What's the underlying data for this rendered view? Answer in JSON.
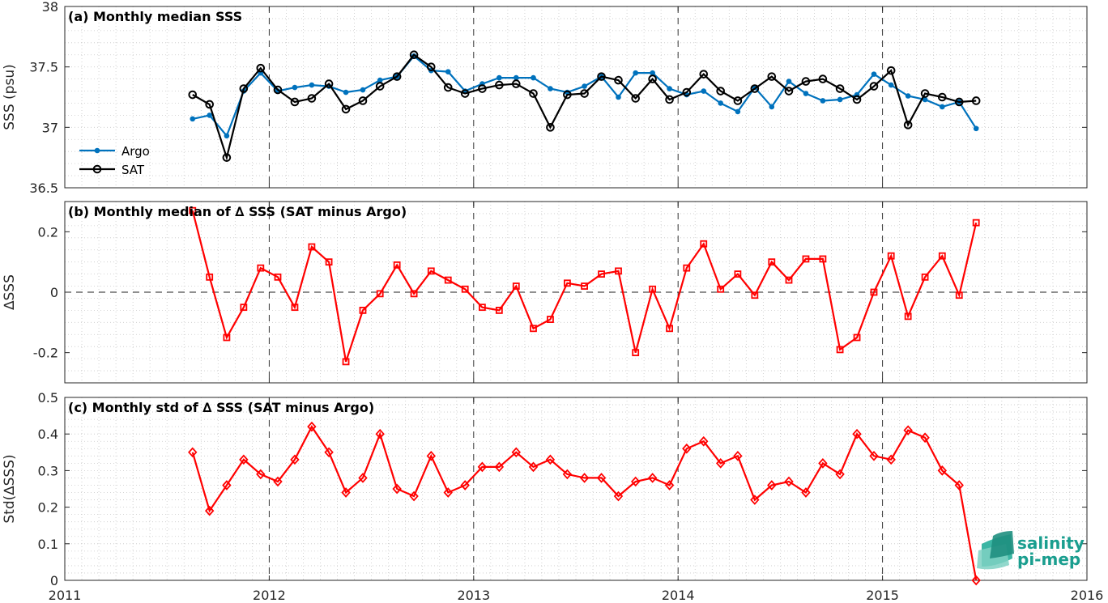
{
  "xaxis": {
    "ticks": [
      2011,
      2012,
      2013,
      2014,
      2015,
      2016
    ],
    "labels": [
      "2011",
      "2012",
      "2013",
      "2014",
      "2015",
      "2016"
    ],
    "xlim": [
      2011,
      2016
    ]
  },
  "logo": {
    "line1": "salinity",
    "line2": "pi-mep"
  },
  "colors": {
    "argo": "#0072BD",
    "sat": "#000000",
    "delta": "#FF0000",
    "grid": "#C8C8C8"
  },
  "chart_data": [
    {
      "type": "line",
      "title": "(a) Monthly median SSS",
      "ylabel": "SSS (psu)",
      "ylim": [
        36.5,
        38
      ],
      "yticks": [
        36.5,
        37,
        37.5,
        38
      ],
      "yticklabels": [
        "36.5",
        "37",
        "37.5",
        "38"
      ],
      "grid": true,
      "legend": {
        "placement": "lower-left",
        "entries": [
          "Argo",
          "SAT"
        ]
      },
      "x": [
        2011.625,
        2011.708,
        2011.792,
        2011.875,
        2011.958,
        2012.042,
        2012.125,
        2012.208,
        2012.292,
        2012.375,
        2012.458,
        2012.542,
        2012.625,
        2012.708,
        2012.792,
        2012.875,
        2012.958,
        2013.042,
        2013.125,
        2013.208,
        2013.292,
        2013.375,
        2013.458,
        2013.542,
        2013.625,
        2013.708,
        2013.792,
        2013.875,
        2013.958,
        2014.042,
        2014.125,
        2014.208,
        2014.292,
        2014.375,
        2014.458,
        2014.542,
        2014.625,
        2014.708,
        2014.792,
        2014.875,
        2014.958,
        2015.042,
        2015.125,
        2015.208,
        2015.292,
        2015.375,
        2015.458
      ],
      "series": [
        {
          "name": "Argo",
          "marker": "dot",
          "values": [
            37.07,
            37.1,
            36.93,
            37.3,
            37.45,
            37.3,
            37.33,
            37.35,
            37.34,
            37.29,
            37.31,
            37.39,
            37.42,
            37.59,
            37.47,
            37.46,
            37.3,
            37.36,
            37.41,
            37.41,
            37.41,
            37.32,
            37.29,
            37.34,
            37.42,
            37.25,
            37.45,
            37.45,
            37.32,
            37.27,
            37.3,
            37.2,
            37.13,
            37.33,
            37.17,
            37.38,
            37.28,
            37.22,
            37.23,
            37.27,
            37.44,
            37.35,
            37.26,
            37.23,
            37.17,
            37.21,
            36.99
          ]
        },
        {
          "name": "SAT",
          "marker": "circle",
          "values": [
            37.27,
            37.19,
            36.75,
            37.32,
            37.49,
            37.31,
            37.21,
            37.24,
            37.36,
            37.15,
            37.22,
            37.34,
            37.42,
            37.6,
            37.5,
            37.33,
            37.28,
            37.32,
            37.35,
            37.36,
            37.28,
            37.0,
            37.27,
            37.28,
            37.42,
            37.39,
            37.24,
            37.4,
            37.23,
            37.29,
            37.44,
            37.3,
            37.22,
            37.32,
            37.42,
            37.3,
            37.38,
            37.4,
            37.32,
            37.23,
            37.34,
            37.47,
            37.02,
            37.28,
            37.25,
            37.21,
            37.22
          ]
        }
      ]
    },
    {
      "type": "line",
      "title": "(b) Monthly median of ∆ SSS (SAT minus Argo)",
      "ylabel": "∆SSS",
      "ylim": [
        -0.3,
        0.3
      ],
      "yticks": [
        -0.2,
        0,
        0.2
      ],
      "yticklabels": [
        "-0.2",
        "0",
        "0.2"
      ],
      "grid": true,
      "reference_line": 0,
      "series": [
        {
          "name": "",
          "marker": "square",
          "values": [
            0.27,
            0.05,
            -0.15,
            -0.05,
            0.08,
            0.05,
            -0.05,
            0.15,
            0.1,
            -0.23,
            -0.06,
            -0.005,
            0.09,
            -0.005,
            0.07,
            0.04,
            0.01,
            -0.05,
            -0.06,
            0.02,
            -0.12,
            -0.09,
            0.03,
            0.02,
            0.06,
            0.07,
            -0.2,
            0.01,
            -0.12,
            0.08,
            0.16,
            0.01,
            0.06,
            -0.01,
            0.1,
            0.04,
            0.11,
            0.11,
            -0.19,
            -0.15,
            0.0,
            0.12,
            -0.08,
            0.05,
            0.12,
            -0.01,
            0.23
          ]
        }
      ]
    },
    {
      "type": "line",
      "title": "(c) Monthly std of ∆ SSS (SAT minus Argo)",
      "ylabel": "Std(∆SSS)",
      "ylim": [
        0,
        0.5
      ],
      "yticks": [
        0,
        0.1,
        0.2,
        0.3,
        0.4,
        0.5
      ],
      "yticklabels": [
        "0",
        "0.1",
        "0.2",
        "0.3",
        "0.4",
        "0.5"
      ],
      "grid": true,
      "series": [
        {
          "name": "",
          "marker": "diamond",
          "values": [
            0.35,
            0.19,
            0.26,
            0.33,
            0.29,
            0.27,
            0.33,
            0.42,
            0.35,
            0.24,
            0.28,
            0.4,
            0.25,
            0.23,
            0.34,
            0.24,
            0.26,
            0.31,
            0.31,
            0.35,
            0.31,
            0.33,
            0.29,
            0.28,
            0.28,
            0.23,
            0.27,
            0.28,
            0.26,
            0.36,
            0.38,
            0.32,
            0.34,
            0.22,
            0.26,
            0.27,
            0.24,
            0.32,
            0.29,
            0.4,
            0.34,
            0.33,
            0.41,
            0.39,
            0.3,
            0.26,
            0.0
          ]
        }
      ]
    }
  ]
}
